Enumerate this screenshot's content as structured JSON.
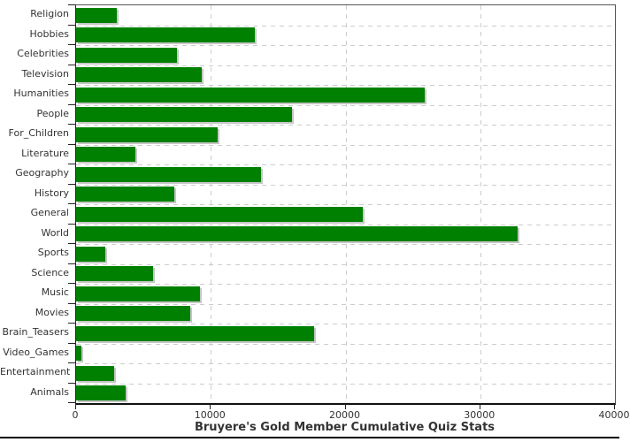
{
  "chart_data": {
    "type": "bar",
    "orientation": "horizontal",
    "title": "Bruyere's Gold Member Cumulative Quiz Stats",
    "categories": [
      "Religion",
      "Hobbies",
      "Celebrities",
      "Television",
      "Humanities",
      "People",
      "For_Children",
      "Literature",
      "Geography",
      "History",
      "General",
      "World",
      "Sports",
      "Science",
      "Music",
      "Movies",
      "Brain_Teasers",
      "Video_Games",
      "Entertainment",
      "Animals"
    ],
    "values": [
      3000,
      13300,
      7500,
      9300,
      25900,
      16000,
      10500,
      4400,
      13700,
      7300,
      21300,
      32800,
      2200,
      5700,
      9200,
      8500,
      17700,
      400,
      2800,
      3700
    ],
    "xlabel": "",
    "ylabel": "",
    "xlim": [
      0,
      40000
    ],
    "x_ticks": [
      0,
      10000,
      20000,
      30000,
      40000
    ],
    "x_tick_labels": [
      "0",
      "10000",
      "20000",
      "30000",
      "40000"
    ],
    "legend": "none",
    "grid": "dashed",
    "colors": {
      "bar": "#008000",
      "bar_shadow": "#c6c6c6",
      "grid": "#cccccc",
      "axis": "#222222",
      "text": "#333333"
    }
  }
}
